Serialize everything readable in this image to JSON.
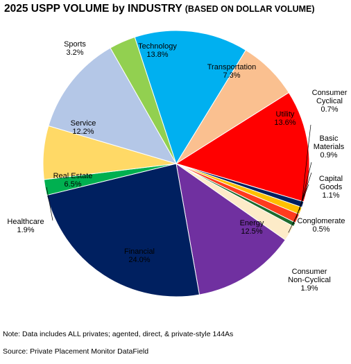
{
  "title": {
    "main": "2025 USPP VOLUME by INDUSTRY",
    "sub": "(BASED ON DOLLAR VOLUME)"
  },
  "note": "Note: Data includes ALL privates; agented, direct, & private-style 144As",
  "source": "Source:  Private Placement Monitor DataField",
  "chart_data": {
    "type": "pie",
    "title": "2025 USPP VOLUME by INDUSTRY (BASED ON DOLLAR VOLUME)",
    "slices": [
      {
        "name": "Transportation",
        "value": 7.3,
        "label": "7.3%",
        "color": "#fac090"
      },
      {
        "name": "Utility",
        "value": 13.6,
        "label": "13.6%",
        "color": "#ff0000"
      },
      {
        "name": "Consumer Cyclical",
        "value": 0.7,
        "label": "0.7%",
        "color": "#002060"
      },
      {
        "name": "Basic Materials",
        "value": 0.9,
        "label": "0.9%",
        "color": "#ffc000"
      },
      {
        "name": "Capital Goods",
        "value": 1.1,
        "label": "1.1%",
        "color": "#ff3b1f"
      },
      {
        "name": "Conglomerate",
        "value": 0.5,
        "label": "0.5%",
        "color": "#1e6b2e"
      },
      {
        "name": "Consumer Non-Cyclical",
        "value": 1.9,
        "label": "1.9%",
        "color": "#fdebc8"
      },
      {
        "name": "Energy",
        "value": 12.5,
        "label": "12.5%",
        "color": "#7030a0"
      },
      {
        "name": "Financial",
        "value": 24.0,
        "label": "24.0%",
        "color": "#002060"
      },
      {
        "name": "Healthcare",
        "value": 1.9,
        "label": "1.9%",
        "color": "#00b050"
      },
      {
        "name": "Real Estate",
        "value": 6.5,
        "label": "6.5%",
        "color": "#ffd966"
      },
      {
        "name": "Service",
        "value": 12.2,
        "label": "12.2%",
        "color": "#b4c7e7"
      },
      {
        "name": "Sports",
        "value": 3.2,
        "label": "3.2%",
        "color": "#92d050"
      },
      {
        "name": "Technology",
        "value": 13.8,
        "label": "13.8%",
        "color": "#00b0f0"
      }
    ]
  }
}
